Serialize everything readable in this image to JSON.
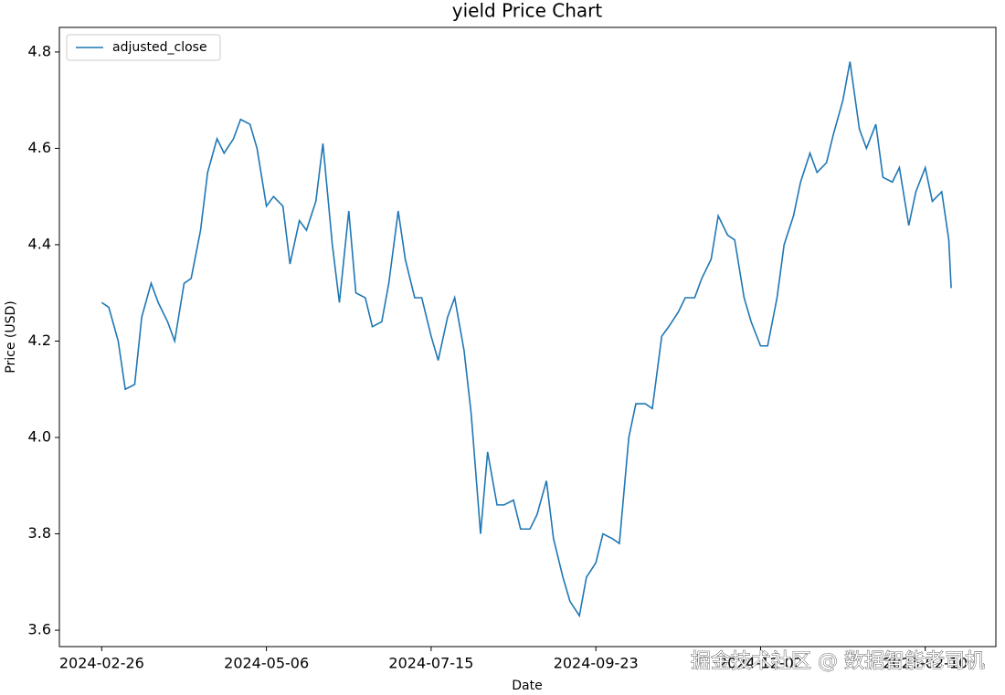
{
  "chart_data": {
    "type": "line",
    "title": "yield Price Chart",
    "x_label": "Date",
    "y_label": "Price (USD)",
    "x": [
      "2024-02-26",
      "2024-02-29",
      "2024-03-04",
      "2024-03-07",
      "2024-03-11",
      "2024-03-14",
      "2024-03-18",
      "2024-03-21",
      "2024-03-25",
      "2024-03-28",
      "2024-04-01",
      "2024-04-04",
      "2024-04-08",
      "2024-04-11",
      "2024-04-15",
      "2024-04-18",
      "2024-04-22",
      "2024-04-25",
      "2024-04-29",
      "2024-05-02",
      "2024-05-06",
      "2024-05-09",
      "2024-05-13",
      "2024-05-16",
      "2024-05-20",
      "2024-05-23",
      "2024-05-27",
      "2024-05-30",
      "2024-06-03",
      "2024-06-06",
      "2024-06-10",
      "2024-06-13",
      "2024-06-17",
      "2024-06-20",
      "2024-06-24",
      "2024-06-27",
      "2024-07-01",
      "2024-07-04",
      "2024-07-08",
      "2024-07-11",
      "2024-07-15",
      "2024-07-18",
      "2024-07-22",
      "2024-07-25",
      "2024-07-29",
      "2024-08-01",
      "2024-08-05",
      "2024-08-08",
      "2024-08-12",
      "2024-08-15",
      "2024-08-19",
      "2024-08-22",
      "2024-08-26",
      "2024-08-29",
      "2024-09-02",
      "2024-09-05",
      "2024-09-09",
      "2024-09-12",
      "2024-09-16",
      "2024-09-19",
      "2024-09-23",
      "2024-09-26",
      "2024-09-30",
      "2024-10-03",
      "2024-10-07",
      "2024-10-10",
      "2024-10-14",
      "2024-10-17",
      "2024-10-21",
      "2024-10-24",
      "2024-10-28",
      "2024-10-31",
      "2024-11-04",
      "2024-11-07",
      "2024-11-11",
      "2024-11-14",
      "2024-11-18",
      "2024-11-21",
      "2024-11-25",
      "2024-11-28",
      "2024-12-02",
      "2024-12-05",
      "2024-12-09",
      "2024-12-12",
      "2024-12-16",
      "2024-12-19",
      "2024-12-23",
      "2024-12-26",
      "2024-12-30",
      "2025-01-02",
      "2025-01-06",
      "2025-01-09",
      "2025-01-13",
      "2025-01-16",
      "2025-01-20",
      "2025-01-23",
      "2025-01-27",
      "2025-01-30",
      "2025-02-03",
      "2025-02-06",
      "2025-02-10",
      "2025-02-13",
      "2025-02-17",
      "2025-02-20",
      "2025-02-21"
    ],
    "series": [
      {
        "name": "adjusted_close",
        "color": "#1f77b4",
        "values": [
          4.28,
          4.27,
          4.2,
          4.1,
          4.11,
          4.25,
          4.32,
          4.28,
          4.24,
          4.2,
          4.32,
          4.33,
          4.43,
          4.55,
          4.62,
          4.59,
          4.62,
          4.66,
          4.65,
          4.6,
          4.48,
          4.5,
          4.48,
          4.36,
          4.45,
          4.43,
          4.49,
          4.61,
          4.4,
          4.28,
          4.47,
          4.3,
          4.29,
          4.23,
          4.24,
          4.32,
          4.47,
          4.37,
          4.29,
          4.29,
          4.21,
          4.16,
          4.25,
          4.29,
          4.18,
          4.05,
          3.8,
          3.97,
          3.86,
          3.86,
          3.87,
          3.81,
          3.81,
          3.84,
          3.91,
          3.79,
          3.71,
          3.66,
          3.63,
          3.71,
          3.74,
          3.8,
          3.79,
          3.78,
          4.0,
          4.07,
          4.07,
          4.06,
          4.21,
          4.23,
          4.26,
          4.29,
          4.29,
          4.33,
          4.37,
          4.46,
          4.42,
          4.41,
          4.29,
          4.24,
          4.19,
          4.19,
          4.29,
          4.4,
          4.46,
          4.53,
          4.59,
          4.55,
          4.57,
          4.63,
          4.7,
          4.78,
          4.64,
          4.6,
          4.65,
          4.54,
          4.53,
          4.56,
          4.44,
          4.51,
          4.56,
          4.49,
          4.51,
          4.41,
          4.31
        ]
      }
    ],
    "xlim": [
      "2024-02-08",
      "2025-03-12"
    ],
    "xticks": [
      "2024-02-26",
      "2024-05-06",
      "2024-07-15",
      "2024-09-23",
      "2024-12-02",
      "2025-02-10"
    ],
    "ylim": [
      3.566,
      4.851
    ],
    "yticks": [
      3.6,
      3.8,
      {
        "value": 4,
        "label": "4.0"
      },
      4.2,
      4.4,
      4.6,
      4.8
    ],
    "legend": "upper left",
    "grid": false
  },
  "watermark": "掘金技术社区 @ 数据智能老司机"
}
